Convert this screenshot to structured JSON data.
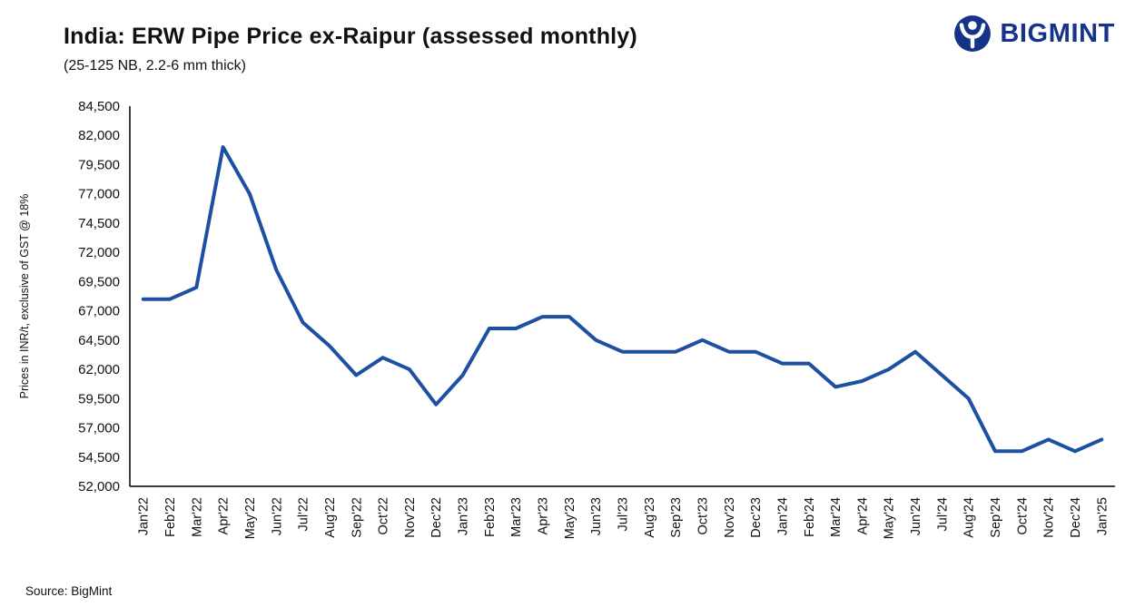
{
  "header": {
    "title": "India: ERW Pipe Price ex-Raipur (assessed monthly)",
    "subtitle": "(25-125 NB, 2.2-6 mm thick)",
    "brand": "BIGMINT"
  },
  "source": "Source: BigMint",
  "colors": {
    "line": "#1d50a2",
    "brand_navy": "#16338a",
    "axis": "#000000",
    "text": "#111111"
  },
  "chart_data": {
    "type": "line",
    "title": "India: ERW Pipe Price ex-Raipur (assessed monthly)",
    "subtitle": "(25-125 NB, 2.2-6 mm thick)",
    "xlabel": "",
    "ylabel": "Prices in INR/t, exclusive of GST @ 18%",
    "ylim": [
      52000,
      84500
    ],
    "ytick_step": 2500,
    "grid": false,
    "legend": "none",
    "line_color": "#1d50a2",
    "categories": [
      "Jan'22",
      "Feb'22",
      "Mar'22",
      "Apr'22",
      "May'22",
      "Jun'22",
      "Jul'22",
      "Aug'22",
      "Sep'22",
      "Oct'22",
      "Nov'22",
      "Dec'22",
      "Jan'23",
      "Feb'23",
      "Mar'23",
      "Apr'23",
      "May'23",
      "Jun'23",
      "Jul'23",
      "Aug'23",
      "Sep'23",
      "Oct'23",
      "Nov'23",
      "Dec'23",
      "Jan'24",
      "Feb'24",
      "Mar'24",
      "Apr'24",
      "May'24",
      "Jun'24",
      "Jul'24",
      "Aug'24",
      "Sep'24",
      "Oct'24",
      "Nov'24",
      "Dec'24",
      "Jan'25"
    ],
    "series": [
      {
        "name": "ERW Pipe Price ex-Raipur (INR/t)",
        "values": [
          68000,
          68000,
          69000,
          81000,
          77000,
          70500,
          66000,
          64000,
          61500,
          63000,
          62000,
          59000,
          61500,
          65500,
          65500,
          66500,
          66500,
          64500,
          63500,
          63500,
          63500,
          64500,
          63500,
          63500,
          62500,
          62500,
          60500,
          61000,
          62000,
          63500,
          61500,
          59500,
          55000,
          55000,
          56000,
          55000,
          56000
        ]
      }
    ]
  }
}
